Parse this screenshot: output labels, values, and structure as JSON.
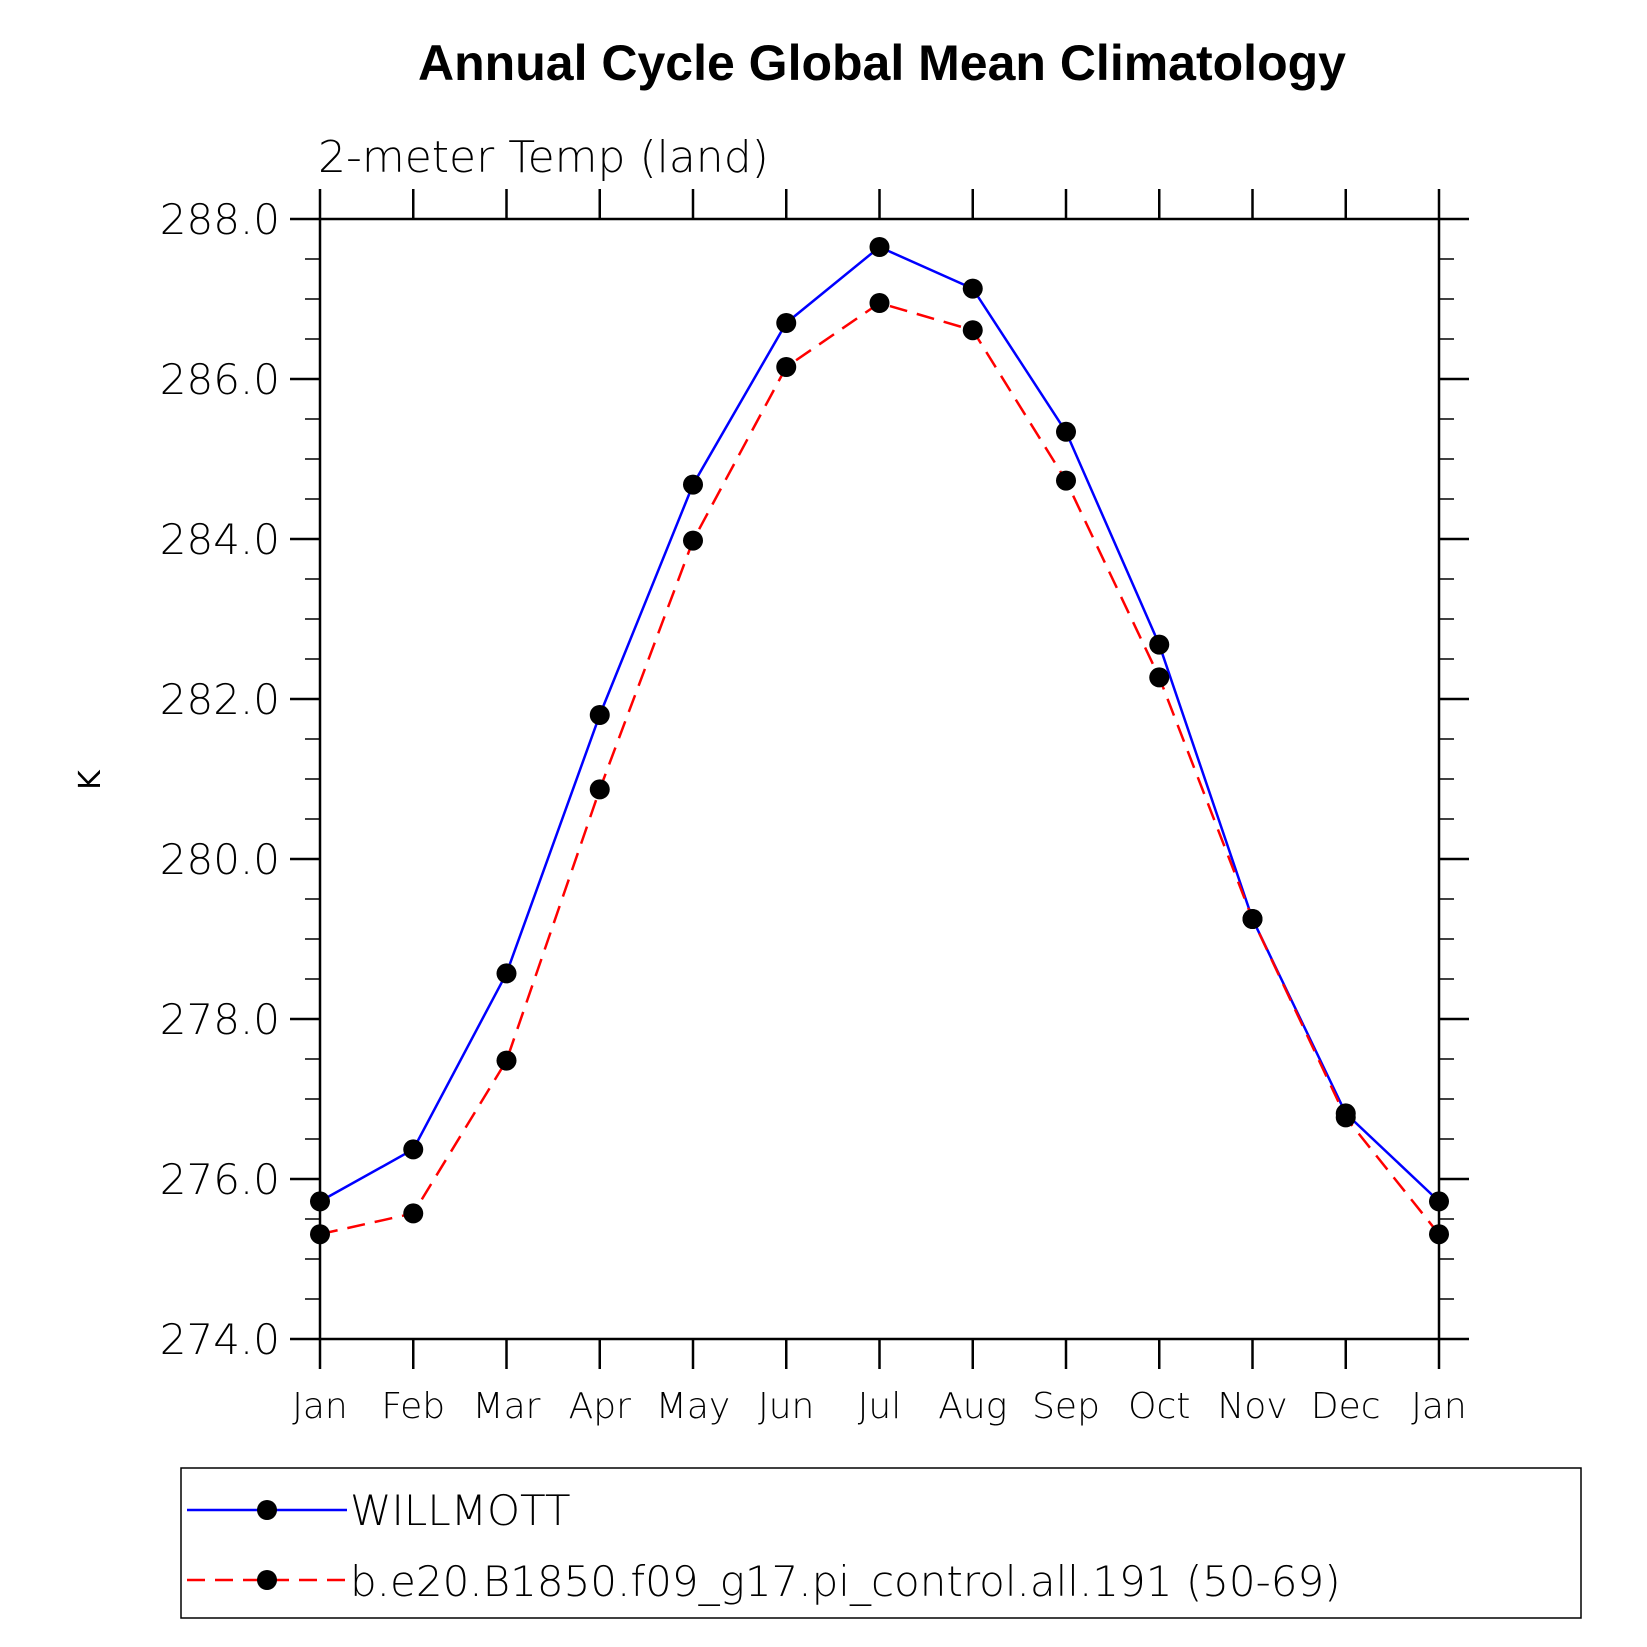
{
  "chart_data": {
    "type": "line",
    "title": "Annual Cycle Global Mean Climatology",
    "subtitle": "2-meter Temp (land)",
    "xlabel": "",
    "ylabel": "K",
    "categories": [
      "Jan",
      "Feb",
      "Mar",
      "Apr",
      "May",
      "Jun",
      "Jul",
      "Aug",
      "Sep",
      "Oct",
      "Nov",
      "Dec",
      "Jan"
    ],
    "ylim": [
      274.0,
      288.0
    ],
    "yticks": [
      274.0,
      276.0,
      278.0,
      280.0,
      282.0,
      284.0,
      286.0,
      288.0
    ],
    "ytick_labels": [
      "274.0",
      "276.0",
      "278.0",
      "280.0",
      "282.0",
      "284.0",
      "286.0",
      "288.0"
    ],
    "grid": false,
    "legend_position": "bottom",
    "series": [
      {
        "name": "WILLMOTT",
        "color": "#0000ff",
        "style": "solid",
        "marker": "filled-circle",
        "values": [
          275.72,
          276.37,
          278.57,
          281.8,
          284.68,
          286.7,
          287.65,
          287.13,
          285.34,
          282.68,
          279.25,
          276.82,
          275.72
        ]
      },
      {
        "name": "b.e20.B1850.f09_g17.pi_control.all.191 (50-69)",
        "color": "#ff0000",
        "style": "dashed",
        "marker": "filled-circle",
        "values": [
          275.31,
          275.57,
          277.48,
          280.87,
          283.98,
          286.15,
          286.95,
          286.61,
          284.73,
          282.27,
          279.25,
          276.77,
          275.31
        ]
      }
    ]
  }
}
